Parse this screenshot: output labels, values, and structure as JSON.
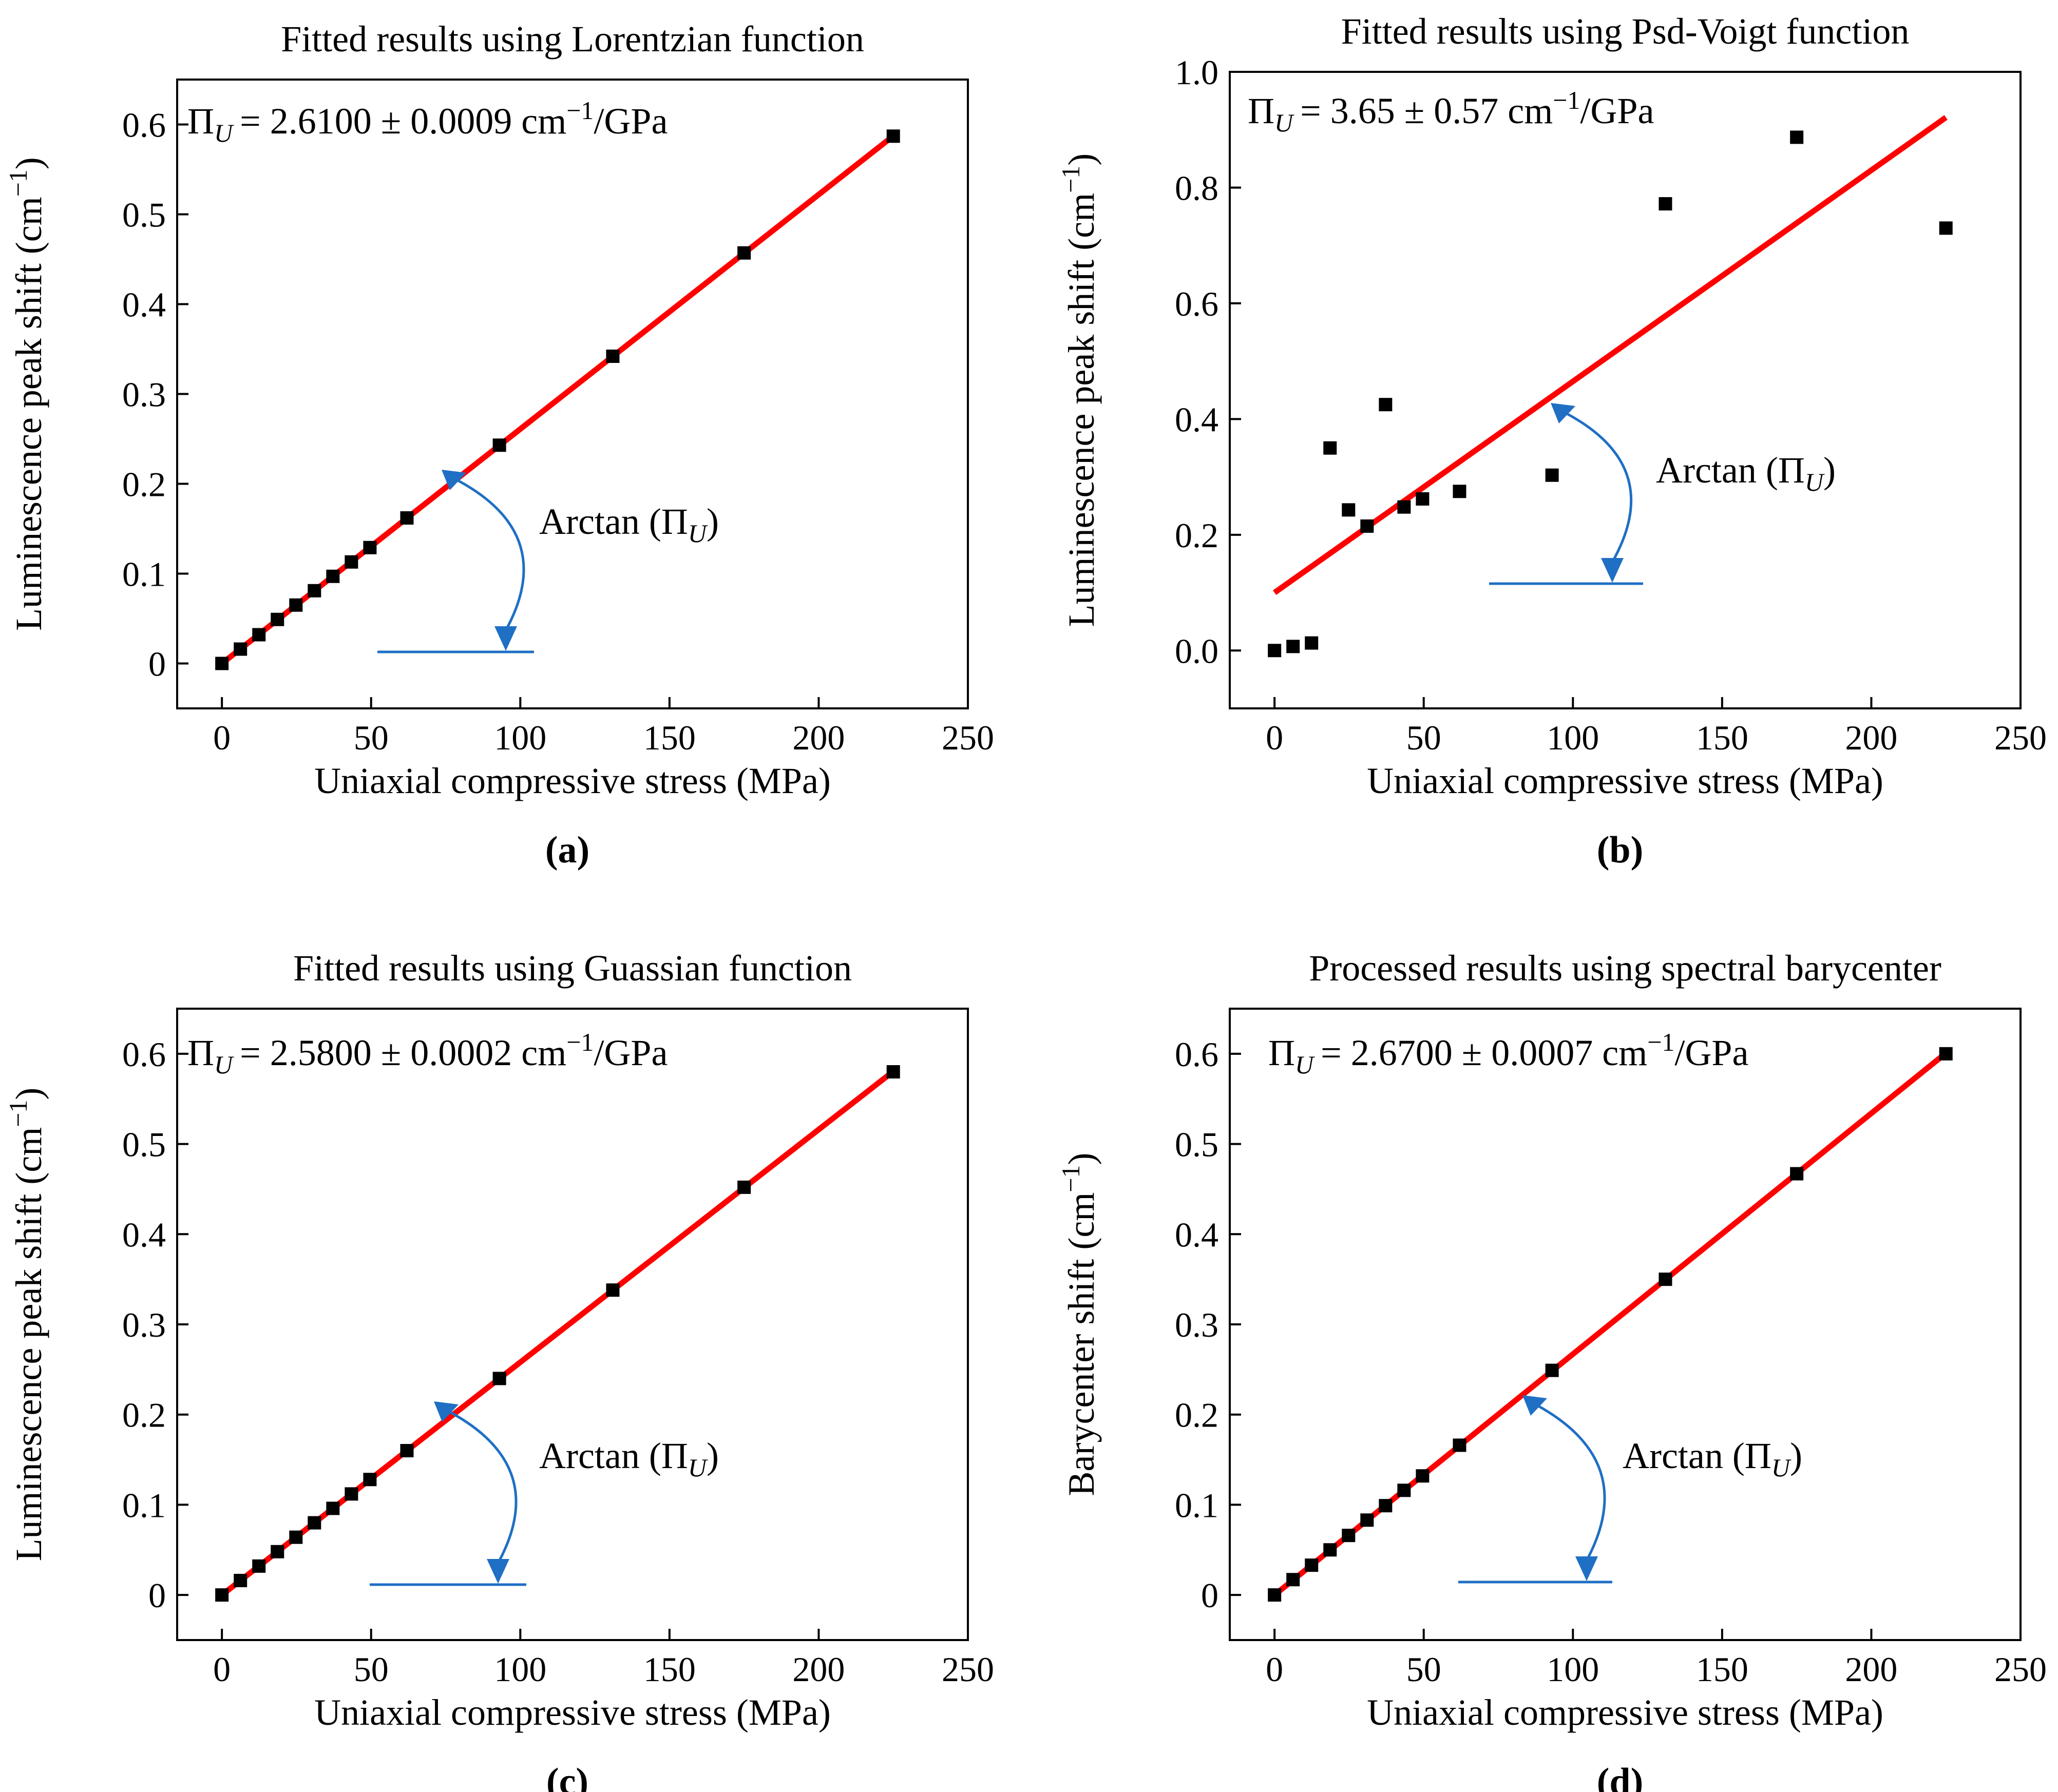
{
  "colors": {
    "fit": "#ff0000",
    "points": "#000000",
    "annotation": "#1f6fc4"
  },
  "chart_data": [
    {
      "id": "a",
      "type": "scatter",
      "panel_label": "(a)",
      "title": "Fitted results using Lorentzian function",
      "xlabel": "Uniaxial compressive stress (MPa)",
      "ylabel_main": "Luminescence peak shift (cm",
      "ylabel_sup": "−1",
      "ylabel_end": ")",
      "xlim": [
        -15,
        250
      ],
      "ylim": [
        -0.05,
        0.65
      ],
      "xticks": [
        0,
        50,
        100,
        150,
        200,
        250
      ],
      "xtick_labels": [
        "0",
        "50",
        "100",
        "150",
        "200",
        "250"
      ],
      "yticks": [
        0,
        0.1,
        0.2,
        0.3,
        0.4,
        0.5,
        0.6
      ],
      "ytick_labels": [
        "0",
        "0.1",
        "0.2",
        "0.3",
        "0.4",
        "0.5",
        "0.6"
      ],
      "formula": {
        "main": "= 2.6100 ± 0.0009 cm",
        "sup": "−1",
        "end": "/GPa"
      },
      "arctan_label": "Arctan (Π",
      "arctan_close": ")",
      "symbol": "Π",
      "symbol_sub": "U",
      "x": [
        0,
        6.2,
        12.4,
        18.6,
        24.8,
        31,
        37.2,
        43.4,
        49.6,
        62,
        93,
        131,
        175,
        225
      ],
      "y": [
        0,
        0.016,
        0.032,
        0.049,
        0.065,
        0.081,
        0.097,
        0.113,
        0.129,
        0.162,
        0.243,
        0.342,
        0.457,
        0.587
      ],
      "fit": {
        "slope": 0.00261,
        "intercept": 0,
        "x_range": [
          0,
          225
        ]
      }
    },
    {
      "id": "b",
      "type": "scatter",
      "panel_label": "(b)",
      "title": "Fitted results using Psd-Voigt function",
      "xlabel": "Uniaxial compressive stress (MPa)",
      "ylabel_main": "Luminescence peak shift (cm",
      "ylabel_sup": "−1",
      "ylabel_end": ")",
      "xlim": [
        -15,
        250
      ],
      "ylim": [
        -0.1,
        1.0
      ],
      "xticks": [
        0,
        50,
        100,
        150,
        200,
        250
      ],
      "xtick_labels": [
        "0",
        "50",
        "100",
        "150",
        "200",
        "250"
      ],
      "yticks": [
        0,
        0.2,
        0.4,
        0.6,
        0.8,
        1.0
      ],
      "ytick_labels": [
        "0.0",
        "0.2",
        "0.4",
        "0.6",
        "0.8",
        "1.0"
      ],
      "formula": {
        "main": "= 3.65 ± 0.57 cm",
        "sup": "−1",
        "end": "/GPa"
      },
      "arctan_label": "Arctan (Π",
      "arctan_close": ")",
      "symbol": "Π",
      "symbol_sub": "U",
      "x": [
        0,
        6.2,
        12.4,
        18.6,
        24.8,
        31,
        37.2,
        43.4,
        49.6,
        62,
        93,
        131,
        175,
        225
      ],
      "y": [
        0.0,
        0.007,
        0.013,
        0.35,
        0.243,
        0.215,
        0.425,
        0.248,
        0.262,
        0.275,
        0.303,
        0.772,
        0.887,
        0.73
      ],
      "fit": {
        "slope": 0.00365,
        "intercept": 0.1,
        "x_range": [
          0,
          225
        ]
      }
    },
    {
      "id": "c",
      "type": "scatter",
      "panel_label": "(c)",
      "title": "Fitted results using Guassian function",
      "xlabel": "Uniaxial compressive stress (MPa)",
      "ylabel_main": "Luminescence peak shift (cm",
      "ylabel_sup": "−1",
      "ylabel_end": ")",
      "xlim": [
        -15,
        250
      ],
      "ylim": [
        -0.05,
        0.65
      ],
      "xticks": [
        0,
        50,
        100,
        150,
        200,
        250
      ],
      "xtick_labels": [
        "0",
        "50",
        "100",
        "150",
        "200",
        "250"
      ],
      "yticks": [
        0,
        0.1,
        0.2,
        0.3,
        0.4,
        0.5,
        0.6
      ],
      "ytick_labels": [
        "0",
        "0.1",
        "0.2",
        "0.3",
        "0.4",
        "0.5",
        "0.6"
      ],
      "formula": {
        "main": "= 2.5800 ± 0.0002 cm",
        "sup": "−1",
        "end": "/GPa"
      },
      "arctan_label": "Arctan (Π",
      "arctan_close": ")",
      "symbol": "Π",
      "symbol_sub": "U",
      "x": [
        0,
        6.2,
        12.4,
        18.6,
        24.8,
        31,
        37.2,
        43.4,
        49.6,
        62,
        93,
        131,
        175,
        225
      ],
      "y": [
        0,
        0.016,
        0.032,
        0.048,
        0.064,
        0.08,
        0.096,
        0.112,
        0.128,
        0.16,
        0.24,
        0.338,
        0.452,
        0.58
      ],
      "fit": {
        "slope": 0.00258,
        "intercept": 0,
        "x_range": [
          0,
          225
        ]
      }
    },
    {
      "id": "d",
      "type": "scatter",
      "panel_label": "(d)",
      "title": "Processed results using spectral barycenter",
      "xlabel": "Uniaxial compressive stress (MPa)",
      "ylabel_main": "Barycenter shift (cm",
      "ylabel_sup": "−1",
      "ylabel_end": ")",
      "xlim": [
        -15,
        250
      ],
      "ylim": [
        -0.05,
        0.65
      ],
      "xticks": [
        0,
        50,
        100,
        150,
        200,
        250
      ],
      "xtick_labels": [
        "0",
        "50",
        "100",
        "150",
        "200",
        "250"
      ],
      "yticks": [
        0,
        0.1,
        0.2,
        0.3,
        0.4,
        0.5,
        0.6
      ],
      "ytick_labels": [
        "0",
        "0.1",
        "0.2",
        "0.3",
        "0.4",
        "0.5",
        "0.6"
      ],
      "formula": {
        "main": "= 2.6700 ± 0.0007 cm",
        "sup": "−1",
        "end": "/GPa"
      },
      "arctan_label": "Arctan (Π",
      "arctan_close": ")",
      "symbol": "Π",
      "symbol_sub": "U",
      "x": [
        0,
        6.2,
        12.4,
        18.6,
        24.8,
        31,
        37.2,
        43.4,
        49.6,
        62,
        93,
        131,
        175,
        225
      ],
      "y": [
        0,
        0.017,
        0.033,
        0.05,
        0.066,
        0.083,
        0.099,
        0.116,
        0.132,
        0.166,
        0.249,
        0.35,
        0.467,
        0.6
      ],
      "fit": {
        "slope": 0.00267,
        "intercept": 0,
        "x_range": [
          0,
          225
        ]
      }
    }
  ]
}
